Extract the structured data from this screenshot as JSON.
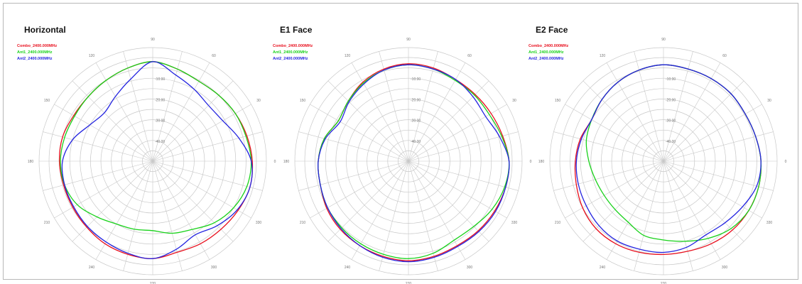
{
  "colors": {
    "combo": "#e8101e",
    "ant1": "#18d21a",
    "ant2": "#2424e0",
    "grid": "#c8c8c8"
  },
  "chart_data": [
    {
      "type": "polar",
      "title": "Horizontal",
      "legend": [
        "Combo_2400.000MHz",
        "Ant1_2400.000MHz",
        "Ant2_2400.000MHz"
      ],
      "angle_ticks": [
        "0",
        "30",
        "60",
        "90",
        "120",
        "150",
        "180",
        "210",
        "240",
        "270",
        "300",
        "330"
      ],
      "radial_ticks": [
        "-10.00",
        "-20.00",
        "-30.00",
        "-40.00"
      ],
      "rlim": [
        -50,
        0
      ],
      "series": [
        {
          "name": "Combo_2400.000MHz",
          "color_key": "combo",
          "angles": [
            0,
            15,
            30,
            45,
            60,
            75,
            90,
            105,
            120,
            135,
            150,
            165,
            180,
            195,
            210,
            225,
            240,
            255,
            270,
            285,
            300,
            315,
            330,
            345
          ],
          "values": [
            -2.0,
            -3.0,
            -4.0,
            -5.0,
            -5.5,
            -4.0,
            -2.0,
            -3.5,
            -5.0,
            -6.0,
            -6.0,
            -5.0,
            -5.0,
            -5.5,
            -5.5,
            -5.0,
            -4.0,
            -3.5,
            -3.0,
            -4.5,
            -4.0,
            -3.5,
            -2.5,
            -1.5
          ]
        },
        {
          "name": "Ant1_2400.000MHz",
          "color_key": "ant1",
          "angles": [
            0,
            15,
            30,
            45,
            60,
            75,
            90,
            105,
            120,
            135,
            150,
            165,
            180,
            195,
            210,
            225,
            240,
            255,
            270,
            285,
            300,
            315,
            330,
            345
          ],
          "values": [
            -2.5,
            -3.5,
            -4.0,
            -5.0,
            -5.5,
            -4.0,
            -2.0,
            -3.5,
            -5.0,
            -6.0,
            -6.5,
            -6.0,
            -5.5,
            -6.0,
            -8.0,
            -12.0,
            -15.0,
            -16.0,
            -16.5,
            -14.0,
            -12.0,
            -8.0,
            -5.0,
            -3.0
          ]
        },
        {
          "name": "Ant2_2400.000MHz",
          "color_key": "ant2",
          "angles": [
            0,
            15,
            30,
            45,
            60,
            75,
            90,
            105,
            120,
            135,
            150,
            165,
            180,
            195,
            210,
            225,
            240,
            255,
            270,
            285,
            300,
            315,
            330,
            345
          ],
          "values": [
            -2.5,
            -7.0,
            -11.0,
            -12.0,
            -10.0,
            -7.0,
            -2.0,
            -9.0,
            -14.0,
            -17.0,
            -15.0,
            -10.0,
            -6.5,
            -6.0,
            -6.0,
            -5.5,
            -5.0,
            -4.0,
            -3.0,
            -6.0,
            -9.0,
            -6.0,
            -3.0,
            -1.5
          ]
        }
      ]
    },
    {
      "type": "polar",
      "title": "E1 Face",
      "legend": [
        "Combo_2400.000MHz",
        "Ant1_2400.000MHz",
        "Ant2_2400.000MHz"
      ],
      "angle_ticks": [
        "0",
        "30",
        "60",
        "90",
        "120",
        "150",
        "180",
        "210",
        "240",
        "270",
        "300",
        "330"
      ],
      "radial_ticks": [
        "-10.00",
        "-20.00",
        "-30.00",
        "-40.00"
      ],
      "rlim": [
        -50,
        0
      ],
      "series": [
        {
          "name": "Combo_2400.000MHz",
          "color_key": "combo",
          "angles": [
            0,
            15,
            30,
            45,
            60,
            75,
            90,
            105,
            120,
            135,
            150,
            165,
            180,
            195,
            210,
            225,
            240,
            255,
            270,
            285,
            300,
            315,
            330,
            345
          ],
          "values": [
            -1.5,
            -3.0,
            -4.0,
            -4.5,
            -4.5,
            -3.5,
            -3.0,
            -4.0,
            -6.0,
            -9.0,
            -11.0,
            -8.0,
            -6.5,
            -6.0,
            -4.5,
            -3.5,
            -3.0,
            -2.5,
            -2.0,
            -2.5,
            -3.0,
            -2.5,
            -2.0,
            -1.5
          ]
        },
        {
          "name": "Ant1_2400.000MHz",
          "color_key": "ant1",
          "angles": [
            0,
            15,
            30,
            45,
            60,
            75,
            90,
            105,
            120,
            135,
            150,
            165,
            180,
            195,
            210,
            225,
            240,
            255,
            270,
            285,
            300,
            315,
            330,
            345
          ],
          "values": [
            -1.5,
            -3.5,
            -5.0,
            -5.0,
            -5.0,
            -4.0,
            -3.5,
            -4.5,
            -6.5,
            -9.0,
            -11.0,
            -8.0,
            -6.5,
            -6.0,
            -5.0,
            -4.5,
            -4.0,
            -3.5,
            -3.0,
            -4.0,
            -6.0,
            -5.5,
            -3.5,
            -2.0
          ]
        },
        {
          "name": "Ant2_2400.000MHz",
          "color_key": "ant2",
          "angles": [
            0,
            15,
            30,
            45,
            60,
            75,
            90,
            105,
            120,
            135,
            150,
            165,
            180,
            195,
            210,
            225,
            240,
            255,
            270,
            285,
            300,
            315,
            330,
            345
          ],
          "values": [
            -1.5,
            -4.5,
            -7.0,
            -6.0,
            -4.5,
            -4.0,
            -3.5,
            -4.5,
            -7.0,
            -9.5,
            -12.0,
            -8.5,
            -6.5,
            -6.0,
            -5.0,
            -4.0,
            -3.0,
            -2.0,
            -1.5,
            -2.0,
            -2.5,
            -2.0,
            -1.5,
            -1.5
          ]
        }
      ]
    },
    {
      "type": "polar",
      "title": "E2 Face",
      "legend": [
        "Combo_2400.000MHz",
        "Ant1_2400.000MHz",
        "Ant2_2400.000MHz"
      ],
      "angle_ticks": [
        "0",
        "30",
        "60",
        "90",
        "120",
        "150",
        "180",
        "210",
        "240",
        "270",
        "300",
        "330"
      ],
      "radial_ticks": [
        "-10.00",
        "-20.00",
        "-30.00",
        "-40.00"
      ],
      "rlim": [
        -50,
        0
      ],
      "series": [
        {
          "name": "Combo_2400.000MHz",
          "color_key": "combo",
          "angles": [
            0,
            15,
            30,
            45,
            60,
            75,
            90,
            105,
            120,
            135,
            150,
            165,
            180,
            195,
            210,
            225,
            240,
            255,
            270,
            285,
            300,
            315,
            330,
            345
          ],
          "values": [
            -3.0,
            -4.0,
            -4.5,
            -4.0,
            -4.0,
            -4.0,
            -3.5,
            -4.5,
            -6.0,
            -8.0,
            -10.0,
            -8.5,
            -7.5,
            -6.5,
            -5.0,
            -4.0,
            -4.0,
            -4.5,
            -5.0,
            -5.0,
            -4.0,
            -3.0,
            -2.5,
            -2.5
          ]
        },
        {
          "name": "Ant1_2400.000MHz",
          "color_key": "ant1",
          "angles": [
            0,
            15,
            30,
            45,
            60,
            75,
            90,
            105,
            120,
            135,
            150,
            165,
            180,
            195,
            210,
            225,
            240,
            255,
            270,
            285,
            300,
            315,
            330,
            345
          ],
          "values": [
            -3.0,
            -4.0,
            -4.5,
            -4.0,
            -4.0,
            -4.0,
            -3.5,
            -4.5,
            -6.0,
            -8.0,
            -10.0,
            -11.5,
            -14.0,
            -16.0,
            -17.0,
            -17.0,
            -16.0,
            -13.0,
            -12.0,
            -10.0,
            -7.0,
            -4.0,
            -2.5,
            -2.5
          ]
        },
        {
          "name": "Ant2_2400.000MHz",
          "color_key": "ant2",
          "angles": [
            0,
            15,
            30,
            45,
            60,
            75,
            90,
            105,
            120,
            135,
            150,
            165,
            180,
            195,
            210,
            225,
            240,
            255,
            270,
            285,
            300,
            315,
            330,
            345
          ],
          "values": [
            -3.0,
            -4.0,
            -4.5,
            -4.0,
            -4.0,
            -4.0,
            -3.5,
            -4.5,
            -6.0,
            -8.0,
            -10.0,
            -9.0,
            -8.0,
            -7.5,
            -7.0,
            -6.0,
            -5.5,
            -6.0,
            -6.0,
            -7.0,
            -9.0,
            -8.0,
            -6.0,
            -3.5
          ]
        }
      ]
    }
  ]
}
